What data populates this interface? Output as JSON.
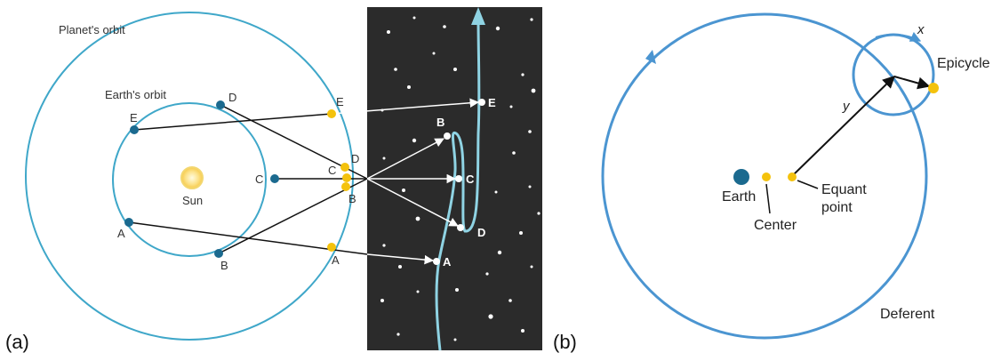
{
  "panel_a": {
    "label": "(a)",
    "planet_orbit_label": "Planet's orbit",
    "earth_orbit_label": "Earth's orbit",
    "sun_label": "Sun",
    "earth_positions": [
      "A",
      "B",
      "C",
      "D",
      "E"
    ],
    "planet_positions": [
      "A",
      "B",
      "C",
      "D",
      "E"
    ],
    "sky_positions": [
      "A",
      "B",
      "C",
      "D",
      "E"
    ]
  },
  "panel_b": {
    "label": "(b)",
    "epicycle_label": "Epicycle",
    "deferent_label": "Deferent",
    "earth_label": "Earth",
    "center_label": "Center",
    "equant_label_1": "Equant",
    "equant_label_2": "point",
    "x_label": "x",
    "y_label": "y"
  },
  "colors": {
    "orbit_blue": "#3fa7c9",
    "earth_dot": "#1b6a8f",
    "planet_dot": "#f4c20d",
    "sky_bg": "#2b2b2b",
    "path_blue": "#8fd3e3",
    "deferent_blue": "#4b95d1",
    "sun": "#fce28a"
  }
}
